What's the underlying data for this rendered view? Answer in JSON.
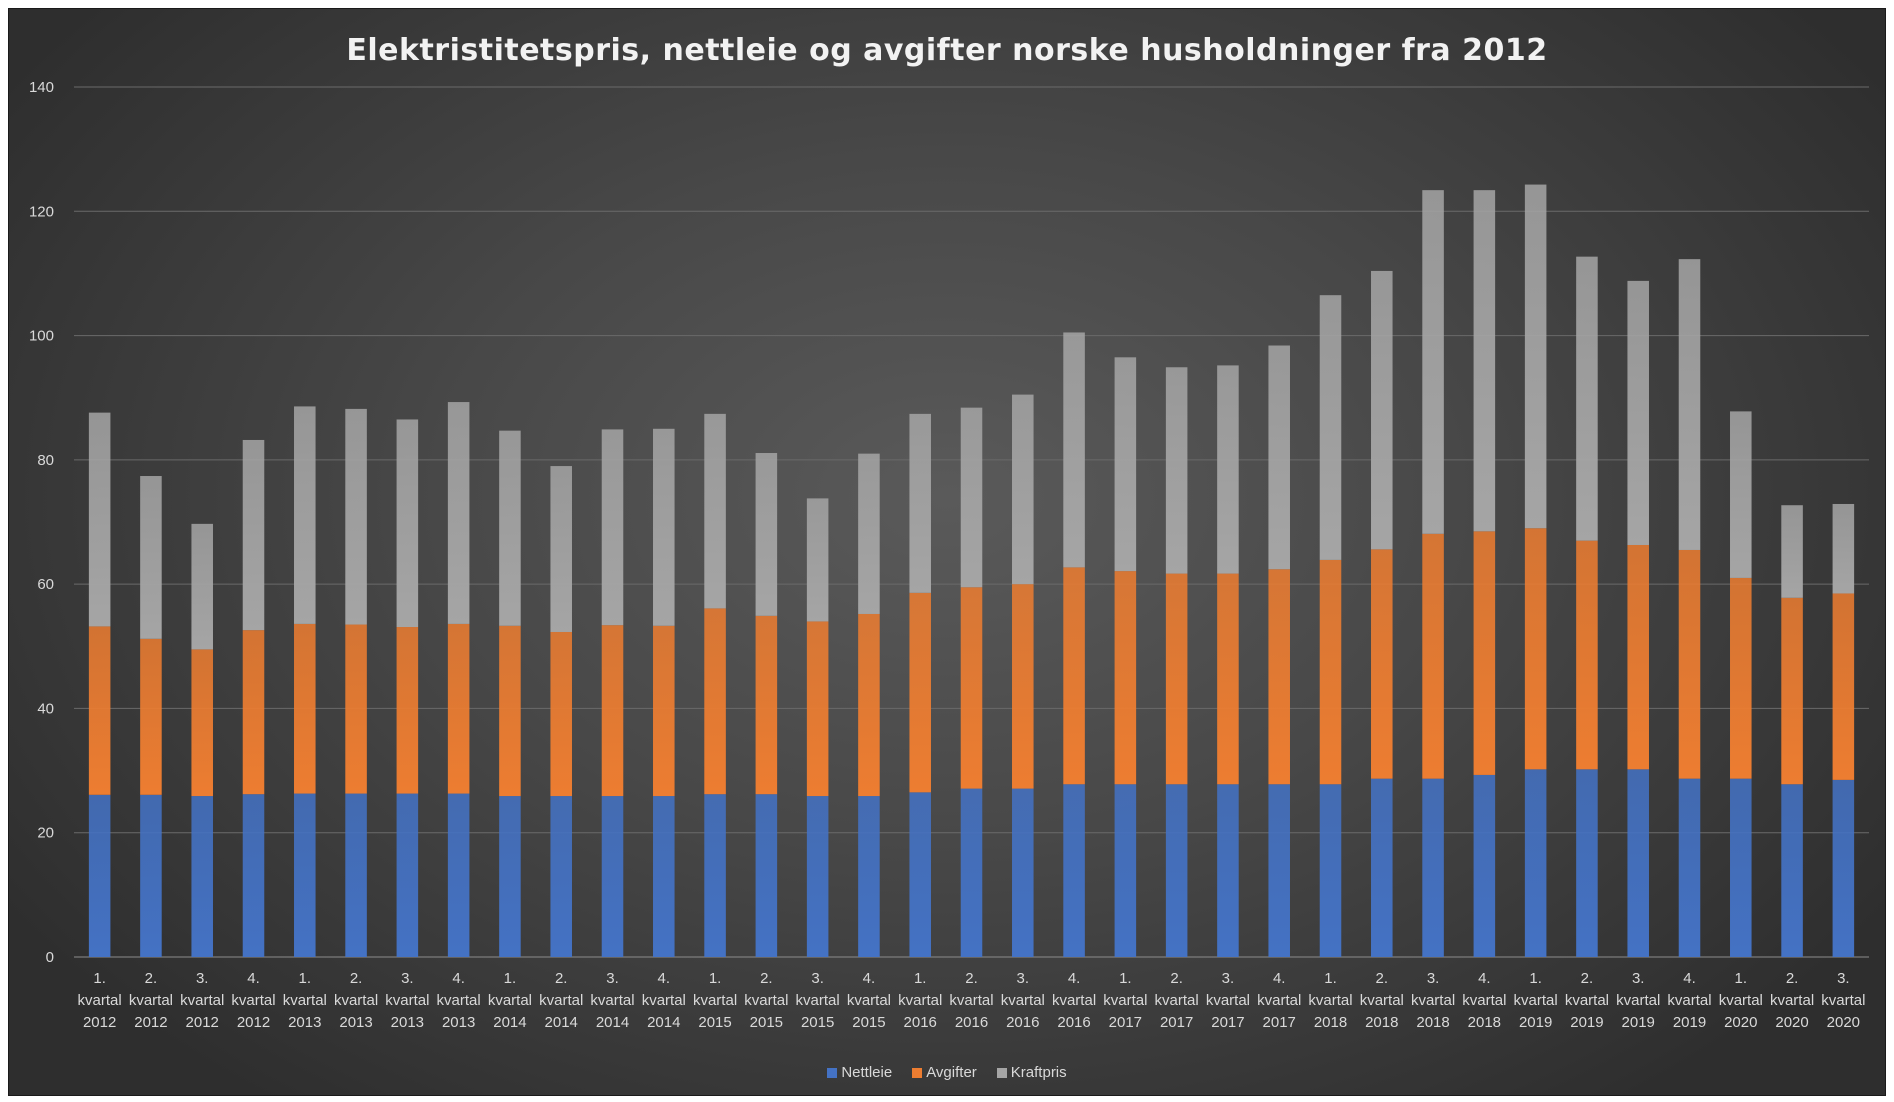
{
  "chart_data": {
    "type": "bar",
    "stacked": true,
    "title": "Elektristitetspris, nettleie og avgifter norske husholdninger fra 2012",
    "ylim": [
      0,
      140
    ],
    "yticks": [
      0,
      20,
      40,
      60,
      80,
      100,
      120,
      140
    ],
    "grid": true,
    "legend_position": "bottom",
    "categories": [
      [
        "1.",
        "kvartal",
        "2012"
      ],
      [
        "2.",
        "kvartal",
        "2012"
      ],
      [
        "3.",
        "kvartal",
        "2012"
      ],
      [
        "4.",
        "kvartal",
        "2012"
      ],
      [
        "1.",
        "kvartal",
        "2013"
      ],
      [
        "2.",
        "kvartal",
        "2013"
      ],
      [
        "3.",
        "kvartal",
        "2013"
      ],
      [
        "4.",
        "kvartal",
        "2013"
      ],
      [
        "1.",
        "kvartal",
        "2014"
      ],
      [
        "2.",
        "kvartal",
        "2014"
      ],
      [
        "3.",
        "kvartal",
        "2014"
      ],
      [
        "4.",
        "kvartal",
        "2014"
      ],
      [
        "1.",
        "kvartal",
        "2015"
      ],
      [
        "2.",
        "kvartal",
        "2015"
      ],
      [
        "3.",
        "kvartal",
        "2015"
      ],
      [
        "4.",
        "kvartal",
        "2015"
      ],
      [
        "1.",
        "kvartal",
        "2016"
      ],
      [
        "2.",
        "kvartal",
        "2016"
      ],
      [
        "3.",
        "kvartal",
        "2016"
      ],
      [
        "4.",
        "kvartal",
        "2016"
      ],
      [
        "1.",
        "kvartal",
        "2017"
      ],
      [
        "2.",
        "kvartal",
        "2017"
      ],
      [
        "3.",
        "kvartal",
        "2017"
      ],
      [
        "4.",
        "kvartal",
        "2017"
      ],
      [
        "1.",
        "kvartal",
        "2018"
      ],
      [
        "2.",
        "kvartal",
        "2018"
      ],
      [
        "3.",
        "kvartal",
        "2018"
      ],
      [
        "4.",
        "kvartal",
        "2018"
      ],
      [
        "1.",
        "kvartal",
        "2019"
      ],
      [
        "2.",
        "kvartal",
        "2019"
      ],
      [
        "3.",
        "kvartal",
        "2019"
      ],
      [
        "4.",
        "kvartal",
        "2019"
      ],
      [
        "1.",
        "kvartal",
        "2020"
      ],
      [
        "2.",
        "kvartal",
        "2020"
      ],
      [
        "3.",
        "kvartal",
        "2020"
      ]
    ],
    "series": [
      {
        "name": "Nettleie",
        "color": "#4472c4",
        "values": [
          26.1,
          26.1,
          25.9,
          26.2,
          26.3,
          26.3,
          26.3,
          26.3,
          25.9,
          25.9,
          25.9,
          25.9,
          26.2,
          26.2,
          25.9,
          25.9,
          26.5,
          27.1,
          27.1,
          27.8,
          27.8,
          27.8,
          27.8,
          27.8,
          27.8,
          28.7,
          28.7,
          29.3,
          30.2,
          30.2,
          30.2,
          28.7,
          28.7,
          27.8,
          28.5
        ]
      },
      {
        "name": "Avgifter",
        "color": "#ed7d31",
        "values": [
          27.1,
          25.1,
          23.6,
          26.4,
          27.3,
          27.2,
          26.8,
          27.3,
          27.4,
          26.4,
          27.5,
          27.4,
          29.9,
          28.7,
          28.1,
          29.3,
          32.1,
          32.4,
          32.9,
          34.9,
          34.3,
          33.9,
          33.9,
          34.6,
          36.1,
          36.9,
          39.4,
          39.2,
          38.8,
          36.8,
          36.1,
          36.8,
          32.3,
          30.0,
          30.0
        ]
      },
      {
        "name": "Kraftpris",
        "color": "#a5a5a5",
        "values": [
          34.4,
          26.2,
          20.2,
          30.6,
          35.0,
          34.7,
          33.4,
          35.7,
          31.4,
          26.7,
          31.5,
          31.7,
          31.3,
          26.2,
          19.8,
          25.8,
          28.8,
          28.9,
          30.5,
          37.8,
          34.4,
          33.2,
          33.5,
          36.0,
          42.6,
          44.8,
          55.3,
          54.9,
          55.3,
          45.7,
          42.5,
          46.8,
          26.8,
          14.9,
          14.4
        ]
      }
    ]
  }
}
